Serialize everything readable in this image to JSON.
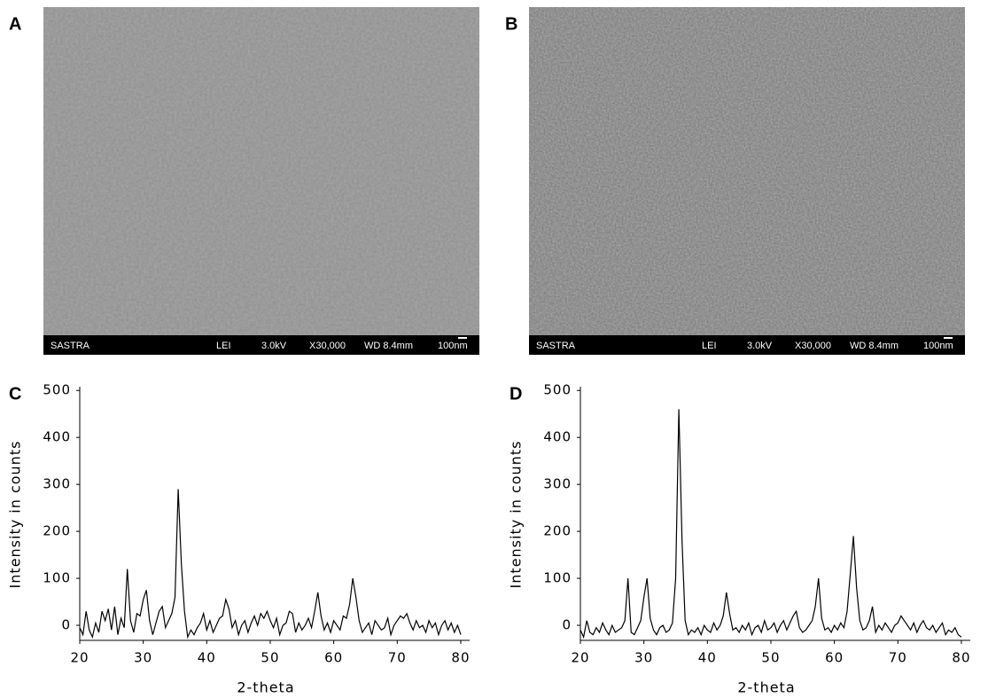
{
  "sem_images": [
    {
      "label": "A",
      "info": [
        "SASTRA",
        "LEI",
        "3.0kV",
        "X30,000",
        "WD 8.4mm",
        "100nm"
      ]
    },
    {
      "label": "B",
      "info": [
        "SASTRA",
        "LEI",
        "3.0kV",
        "X30,000",
        "WD 8.4mm",
        "100nm"
      ]
    }
  ],
  "chart_data": [
    {
      "type": "line",
      "panel_label": "C",
      "x_label": "2-theta",
      "y_label": "Intensity in counts",
      "xlim": [
        20,
        81.4
      ],
      "ylim": [
        -32,
        508
      ],
      "xticks": [
        20,
        30,
        40,
        50,
        60,
        70,
        80
      ],
      "yticks": [
        0,
        100,
        200,
        300,
        400,
        500
      ],
      "series": [
        {
          "color": "#000000",
          "x": [
            20,
            20.5,
            21,
            21.5,
            22,
            22.5,
            23,
            23.5,
            24,
            24.5,
            25,
            25.5,
            26,
            26.5,
            27,
            27.5,
            28,
            28.5,
            29,
            29.5,
            30,
            30.5,
            31,
            31.5,
            32,
            32.5,
            33,
            33.5,
            34,
            34.5,
            35,
            35.5,
            36,
            36.5,
            37,
            37.5,
            38,
            38.5,
            39,
            39.5,
            40,
            40.5,
            41,
            41.5,
            42,
            42.5,
            43,
            43.5,
            44,
            44.5,
            45,
            45.5,
            46,
            46.5,
            47,
            47.5,
            48,
            48.5,
            49,
            49.5,
            50,
            50.5,
            51,
            51.5,
            52,
            52.5,
            53,
            53.5,
            54,
            54.5,
            55,
            55.5,
            56,
            56.5,
            57,
            57.5,
            58,
            58.5,
            59,
            59.5,
            60,
            60.5,
            61,
            61.5,
            62,
            62.5,
            63,
            63.5,
            64,
            64.5,
            65,
            65.5,
            66,
            66.5,
            67,
            67.5,
            68,
            68.5,
            69,
            69.5,
            70,
            70.5,
            71,
            71.5,
            72,
            72.5,
            73,
            73.5,
            74,
            74.5,
            75,
            75.5,
            76,
            76.5,
            77,
            77.5,
            78,
            78.5,
            79,
            79.5,
            80
          ],
          "values": [
            -5,
            -20,
            30,
            -10,
            -25,
            5,
            -15,
            30,
            10,
            35,
            -10,
            40,
            -20,
            15,
            -5,
            120,
            10,
            -15,
            25,
            20,
            55,
            75,
            10,
            -20,
            5,
            30,
            40,
            -5,
            10,
            25,
            60,
            290,
            130,
            30,
            -25,
            -10,
            -20,
            -5,
            5,
            25,
            -10,
            10,
            -15,
            0,
            15,
            20,
            55,
            35,
            -5,
            10,
            -20,
            0,
            10,
            -15,
            5,
            20,
            0,
            25,
            15,
            30,
            10,
            -5,
            15,
            -20,
            0,
            5,
            30,
            25,
            -15,
            5,
            -10,
            0,
            15,
            -5,
            30,
            70,
            20,
            -10,
            5,
            -15,
            10,
            0,
            -10,
            20,
            15,
            45,
            100,
            60,
            10,
            -15,
            -5,
            5,
            -20,
            10,
            0,
            -10,
            -5,
            15,
            -20,
            0,
            10,
            20,
            15,
            25,
            5,
            -10,
            10,
            -5,
            0,
            -15,
            10,
            -5,
            5,
            -20,
            0,
            10,
            -10,
            5,
            -15,
            0,
            -20
          ]
        }
      ]
    },
    {
      "type": "line",
      "panel_label": "D",
      "x_label": "2-theta",
      "y_label": "Intensity in counts",
      "xlim": [
        20,
        81.4
      ],
      "ylim": [
        -32,
        508
      ],
      "xticks": [
        20,
        30,
        40,
        50,
        60,
        70,
        80
      ],
      "yticks": [
        0,
        100,
        200,
        300,
        400,
        500
      ],
      "series": [
        {
          "color": "#000000",
          "x": [
            20,
            20.5,
            21,
            21.5,
            22,
            22.5,
            23,
            23.5,
            24,
            24.5,
            25,
            25.5,
            26,
            26.5,
            27,
            27.5,
            28,
            28.5,
            29,
            29.5,
            30,
            30.5,
            31,
            31.5,
            32,
            32.5,
            33,
            33.5,
            34,
            34.5,
            35,
            35.5,
            36,
            36.5,
            37,
            37.5,
            38,
            38.5,
            39,
            39.5,
            40,
            40.5,
            41,
            41.5,
            42,
            42.5,
            43,
            43.5,
            44,
            44.5,
            45,
            45.5,
            46,
            46.5,
            47,
            47.5,
            48,
            48.5,
            49,
            49.5,
            50,
            50.5,
            51,
            51.5,
            52,
            52.5,
            53,
            53.5,
            54,
            54.5,
            55,
            55.5,
            56,
            56.5,
            57,
            57.5,
            58,
            58.5,
            59,
            59.5,
            60,
            60.5,
            61,
            61.5,
            62,
            62.5,
            63,
            63.5,
            64,
            64.5,
            65,
            65.5,
            66,
            66.5,
            67,
            67.5,
            68,
            68.5,
            69,
            69.5,
            70,
            70.5,
            71,
            71.5,
            72,
            72.5,
            73,
            73.5,
            74,
            74.5,
            75,
            75.5,
            76,
            76.5,
            77,
            77.5,
            78,
            78.5,
            79,
            79.5,
            80
          ],
          "values": [
            -10,
            -25,
            10,
            -15,
            -20,
            -5,
            -15,
            5,
            -10,
            -20,
            0,
            -15,
            -10,
            -5,
            10,
            100,
            -15,
            -20,
            -5,
            10,
            60,
            100,
            15,
            -10,
            -20,
            -5,
            0,
            -15,
            -10,
            5,
            100,
            460,
            180,
            10,
            -20,
            -10,
            -15,
            -5,
            -20,
            0,
            -10,
            -15,
            5,
            -10,
            0,
            20,
            70,
            25,
            -10,
            -5,
            -15,
            0,
            -10,
            5,
            -20,
            -5,
            0,
            -15,
            10,
            -10,
            -5,
            5,
            -15,
            0,
            10,
            -10,
            5,
            20,
            30,
            -5,
            -15,
            -10,
            0,
            10,
            40,
            100,
            15,
            -10,
            -5,
            -15,
            0,
            -10,
            5,
            -5,
            30,
            110,
            190,
            80,
            10,
            -10,
            -5,
            10,
            40,
            -15,
            0,
            -10,
            5,
            -5,
            -15,
            0,
            5,
            20,
            10,
            0,
            -10,
            5,
            -15,
            0,
            10,
            -5,
            -10,
            0,
            -15,
            -5,
            5,
            -20,
            -10,
            -15,
            -5,
            -20,
            -25
          ]
        }
      ]
    }
  ]
}
